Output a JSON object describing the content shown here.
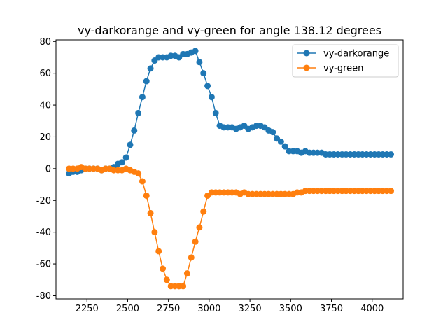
{
  "chart_data": {
    "type": "line",
    "title": "vy-darkorange and vy-green for angle 138.12 degrees",
    "xlabel": "",
    "ylabel": "",
    "xlim": [
      2060,
      4190
    ],
    "ylim": [
      -82,
      81
    ],
    "xticks": [
      2250,
      2500,
      2750,
      3000,
      3250,
      3500,
      3750,
      4000
    ],
    "yticks": [
      -80,
      -60,
      -40,
      -20,
      0,
      20,
      40,
      60,
      80
    ],
    "grid": false,
    "legend": "top-right",
    "x": [
      2140,
      2165,
      2190,
      2215,
      2240,
      2265,
      2290,
      2315,
      2340,
      2365,
      2390,
      2415,
      2440,
      2465,
      2490,
      2515,
      2540,
      2565,
      2590,
      2615,
      2640,
      2665,
      2690,
      2715,
      2740,
      2765,
      2790,
      2815,
      2840,
      2865,
      2890,
      2915,
      2940,
      2965,
      2990,
      3015,
      3040,
      3065,
      3090,
      3115,
      3140,
      3165,
      3190,
      3215,
      3240,
      3265,
      3290,
      3315,
      3340,
      3365,
      3390,
      3415,
      3440,
      3465,
      3490,
      3515,
      3540,
      3565,
      3590,
      3615,
      3640,
      3665,
      3690,
      3715,
      3740,
      3765,
      3790,
      3815,
      3840,
      3865,
      3890,
      3915,
      3940,
      3965,
      3990,
      4015,
      4040,
      4065,
      4090,
      4115
    ],
    "series": [
      {
        "name": "vy-darkorange",
        "color": "#1f77b4",
        "values": [
          -3,
          -2,
          -2,
          -1,
          0,
          0,
          0,
          0,
          -1,
          0,
          0,
          1,
          3,
          4,
          7,
          15,
          24,
          35,
          45,
          55,
          63,
          68,
          70,
          70,
          70,
          71,
          71,
          70,
          72,
          72,
          73,
          74,
          67,
          60,
          52,
          45,
          35,
          27,
          26,
          26,
          26,
          25,
          26,
          27,
          25,
          26,
          27,
          27,
          26,
          24,
          23,
          19,
          17,
          14,
          11,
          11,
          11,
          10,
          11,
          10,
          10,
          10,
          10,
          9,
          9,
          9,
          9,
          9,
          9,
          9,
          9,
          9,
          9,
          9,
          9,
          9,
          9,
          9,
          9,
          9
        ]
      },
      {
        "name": "vy-green",
        "color": "#ff7f0e",
        "values": [
          0,
          0,
          0,
          1,
          0,
          0,
          0,
          0,
          -1,
          0,
          0,
          -1,
          -1,
          -1,
          0,
          -1,
          -2,
          -3,
          -8,
          -17,
          -28,
          -40,
          -52,
          -63,
          -70,
          -74,
          -74,
          -74,
          -74,
          -66,
          -56,
          -46,
          -37,
          -27,
          -17,
          -15,
          -15,
          -15,
          -15,
          -15,
          -15,
          -15,
          -16,
          -15,
          -16,
          -16,
          -16,
          -16,
          -16,
          -16,
          -16,
          -16,
          -16,
          -16,
          -16,
          -16,
          -15,
          -15,
          -14,
          -14,
          -14,
          -14,
          -14,
          -14,
          -14,
          -14,
          -14,
          -14,
          -14,
          -14,
          -14,
          -14,
          -14,
          -14,
          -14,
          -14,
          -14,
          -14,
          -14,
          -14
        ]
      }
    ]
  }
}
